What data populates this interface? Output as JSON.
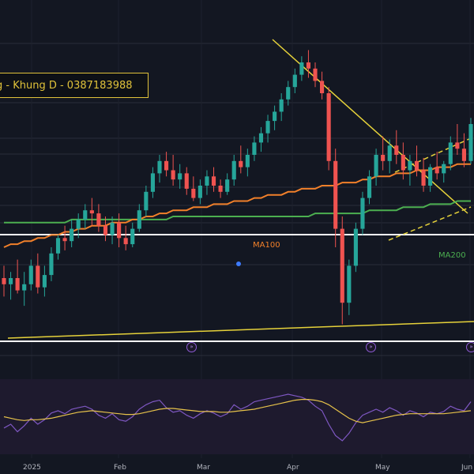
{
  "title": "g - Khung D - 0387183988",
  "ma_labels": {
    "ma100": "MA100",
    "ma200": "MA200"
  },
  "x_axis_labels": [
    "2025",
    "Feb",
    "Mar",
    "Apr",
    "May",
    "Jun"
  ],
  "markers": [
    "»",
    "»",
    "»"
  ],
  "colors": {
    "background": "#131722",
    "up_candle": "#26a69a",
    "down_candle": "#ef5350",
    "ma100": "#f2802a",
    "ma200": "#4caf50",
    "trendline": "#e6d23a",
    "support": "#ffffff",
    "rsi_line": "#7e57c2",
    "rsi_ma": "#e6c24a"
  },
  "chart_data": {
    "type": "candlestick",
    "title": "",
    "y_axis": "price",
    "ylim": [
      0,
      100
    ],
    "candles": [
      {
        "o": 20,
        "h": 24,
        "l": 14,
        "c": 18
      },
      {
        "o": 18,
        "h": 22,
        "l": 13,
        "c": 20
      },
      {
        "o": 20,
        "h": 26,
        "l": 15,
        "c": 16
      },
      {
        "o": 16,
        "h": 22,
        "l": 11,
        "c": 18
      },
      {
        "o": 18,
        "h": 26,
        "l": 16,
        "c": 24
      },
      {
        "o": 24,
        "h": 28,
        "l": 15,
        "c": 17
      },
      {
        "o": 17,
        "h": 24,
        "l": 14,
        "c": 21
      },
      {
        "o": 21,
        "h": 30,
        "l": 19,
        "c": 28
      },
      {
        "o": 28,
        "h": 34,
        "l": 26,
        "c": 33
      },
      {
        "o": 33,
        "h": 37,
        "l": 29,
        "c": 32
      },
      {
        "o": 32,
        "h": 39,
        "l": 30,
        "c": 36
      },
      {
        "o": 36,
        "h": 41,
        "l": 33,
        "c": 39
      },
      {
        "o": 39,
        "h": 44,
        "l": 36,
        "c": 42
      },
      {
        "o": 42,
        "h": 46,
        "l": 37,
        "c": 41
      },
      {
        "o": 41,
        "h": 44,
        "l": 35,
        "c": 37
      },
      {
        "o": 37,
        "h": 40,
        "l": 32,
        "c": 34
      },
      {
        "o": 34,
        "h": 40,
        "l": 31,
        "c": 38
      },
      {
        "o": 38,
        "h": 41,
        "l": 30,
        "c": 33
      },
      {
        "o": 33,
        "h": 37,
        "l": 29,
        "c": 31
      },
      {
        "o": 31,
        "h": 38,
        "l": 30,
        "c": 36
      },
      {
        "o": 36,
        "h": 44,
        "l": 35,
        "c": 42
      },
      {
        "o": 42,
        "h": 50,
        "l": 40,
        "c": 48
      },
      {
        "o": 48,
        "h": 56,
        "l": 46,
        "c": 54
      },
      {
        "o": 54,
        "h": 60,
        "l": 51,
        "c": 58
      },
      {
        "o": 58,
        "h": 61,
        "l": 53,
        "c": 55
      },
      {
        "o": 55,
        "h": 60,
        "l": 50,
        "c": 52
      },
      {
        "o": 52,
        "h": 57,
        "l": 49,
        "c": 54
      },
      {
        "o": 54,
        "h": 56,
        "l": 47,
        "c": 49
      },
      {
        "o": 49,
        "h": 53,
        "l": 45,
        "c": 46
      },
      {
        "o": 46,
        "h": 52,
        "l": 44,
        "c": 50
      },
      {
        "o": 50,
        "h": 55,
        "l": 47,
        "c": 53
      },
      {
        "o": 53,
        "h": 56,
        "l": 48,
        "c": 50
      },
      {
        "o": 50,
        "h": 52,
        "l": 46,
        "c": 48
      },
      {
        "o": 48,
        "h": 54,
        "l": 47,
        "c": 52
      },
      {
        "o": 52,
        "h": 60,
        "l": 50,
        "c": 58
      },
      {
        "o": 58,
        "h": 63,
        "l": 54,
        "c": 56
      },
      {
        "o": 56,
        "h": 62,
        "l": 53,
        "c": 60
      },
      {
        "o": 60,
        "h": 66,
        "l": 58,
        "c": 64
      },
      {
        "o": 64,
        "h": 69,
        "l": 61,
        "c": 67
      },
      {
        "o": 67,
        "h": 73,
        "l": 64,
        "c": 71
      },
      {
        "o": 71,
        "h": 76,
        "l": 68,
        "c": 74
      },
      {
        "o": 74,
        "h": 80,
        "l": 71,
        "c": 78
      },
      {
        "o": 78,
        "h": 84,
        "l": 76,
        "c": 82
      },
      {
        "o": 82,
        "h": 88,
        "l": 80,
        "c": 86
      },
      {
        "o": 86,
        "h": 92,
        "l": 84,
        "c": 90
      },
      {
        "o": 90,
        "h": 94,
        "l": 85,
        "c": 88
      },
      {
        "o": 88,
        "h": 90,
        "l": 82,
        "c": 84
      },
      {
        "o": 84,
        "h": 87,
        "l": 78,
        "c": 80
      },
      {
        "o": 80,
        "h": 82,
        "l": 55,
        "c": 58
      },
      {
        "o": 58,
        "h": 62,
        "l": 30,
        "c": 36
      },
      {
        "o": 36,
        "h": 40,
        "l": 5,
        "c": 12
      },
      {
        "o": 12,
        "h": 26,
        "l": 8,
        "c": 24
      },
      {
        "o": 24,
        "h": 38,
        "l": 22,
        "c": 36
      },
      {
        "o": 36,
        "h": 48,
        "l": 34,
        "c": 46
      },
      {
        "o": 46,
        "h": 55,
        "l": 44,
        "c": 53
      },
      {
        "o": 53,
        "h": 62,
        "l": 50,
        "c": 60
      },
      {
        "o": 60,
        "h": 66,
        "l": 55,
        "c": 58
      },
      {
        "o": 58,
        "h": 65,
        "l": 54,
        "c": 63
      },
      {
        "o": 63,
        "h": 68,
        "l": 57,
        "c": 60
      },
      {
        "o": 60,
        "h": 64,
        "l": 52,
        "c": 55
      },
      {
        "o": 55,
        "h": 60,
        "l": 50,
        "c": 58
      },
      {
        "o": 58,
        "h": 63,
        "l": 53,
        "c": 55
      },
      {
        "o": 55,
        "h": 59,
        "l": 48,
        "c": 50
      },
      {
        "o": 50,
        "h": 57,
        "l": 48,
        "c": 56
      },
      {
        "o": 56,
        "h": 61,
        "l": 52,
        "c": 54
      },
      {
        "o": 54,
        "h": 58,
        "l": 51,
        "c": 57
      },
      {
        "o": 57,
        "h": 66,
        "l": 55,
        "c": 64
      },
      {
        "o": 64,
        "h": 70,
        "l": 60,
        "c": 62
      },
      {
        "o": 62,
        "h": 67,
        "l": 56,
        "c": 58
      },
      {
        "o": 58,
        "h": 72,
        "l": 57,
        "c": 70
      }
    ],
    "ma100": [
      30,
      31,
      31,
      32,
      32,
      33,
      33,
      34,
      34,
      35,
      35,
      36,
      36,
      37,
      37,
      37,
      38,
      38,
      38,
      39,
      39,
      40,
      40,
      41,
      41,
      42,
      42,
      42,
      43,
      43,
      43,
      44,
      44,
      44,
      45,
      45,
      45,
      46,
      46,
      47,
      47,
      47,
      48,
      48,
      49,
      49,
      49,
      50,
      50,
      50,
      51,
      51,
      51,
      52,
      52,
      53,
      53,
      53,
      54,
      54,
      54,
      55,
      55,
      55,
      56,
      56,
      56,
      57,
      57,
      57
    ],
    "ma200": [
      38,
      38,
      38,
      38,
      38,
      38,
      38,
      38,
      38,
      38,
      39,
      39,
      39,
      39,
      39,
      39,
      39,
      39,
      39,
      39,
      39,
      39,
      39,
      39,
      39,
      40,
      40,
      40,
      40,
      40,
      40,
      40,
      40,
      40,
      40,
      40,
      40,
      40,
      40,
      40,
      40,
      40,
      40,
      40,
      40,
      40,
      41,
      41,
      41,
      41,
      41,
      41,
      41,
      41,
      42,
      42,
      42,
      42,
      42,
      43,
      43,
      43,
      43,
      44,
      44,
      44,
      44,
      45,
      45,
      45
    ],
    "rsi": [
      35,
      40,
      30,
      38,
      48,
      40,
      46,
      55,
      58,
      54,
      60,
      62,
      64,
      60,
      52,
      48,
      54,
      46,
      44,
      50,
      60,
      66,
      70,
      72,
      62,
      56,
      58,
      52,
      48,
      54,
      58,
      55,
      50,
      54,
      66,
      60,
      64,
      70,
      72,
      74,
      76,
      78,
      80,
      78,
      76,
      72,
      64,
      58,
      40,
      25,
      18,
      28,
      42,
      52,
      56,
      60,
      56,
      62,
      58,
      52,
      58,
      55,
      50,
      56,
      54,
      57,
      64,
      60,
      58,
      70
    ],
    "rsi_ma": [
      50,
      48,
      46,
      45,
      46,
      46,
      47,
      48,
      50,
      52,
      54,
      56,
      57,
      58,
      57,
      56,
      55,
      54,
      53,
      53,
      54,
      56,
      58,
      60,
      61,
      61,
      60,
      59,
      58,
      57,
      57,
      57,
      56,
      56,
      57,
      58,
      59,
      60,
      62,
      64,
      66,
      68,
      70,
      72,
      73,
      73,
      72,
      70,
      66,
      60,
      54,
      48,
      44,
      42,
      44,
      46,
      48,
      50,
      52,
      53,
      54,
      54,
      54,
      54,
      54,
      54,
      55,
      56,
      57,
      58
    ]
  }
}
